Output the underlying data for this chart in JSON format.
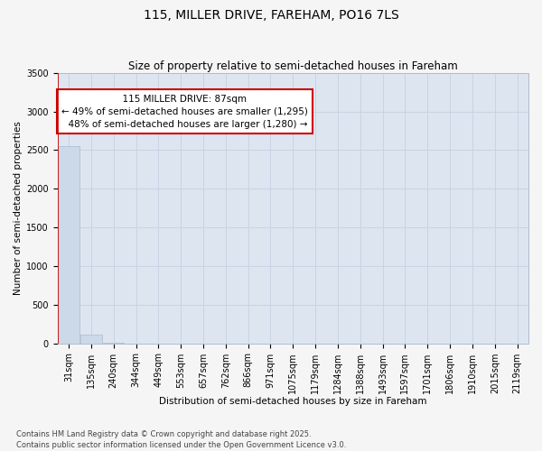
{
  "title1": "115, MILLER DRIVE, FAREHAM, PO16 7LS",
  "title2": "Size of property relative to semi-detached houses in Fareham",
  "xlabel": "Distribution of semi-detached houses by size in Fareham",
  "ylabel": "Number of semi-detached properties",
  "footnote": "Contains HM Land Registry data © Crown copyright and database right 2025.\nContains public sector information licensed under the Open Government Licence v3.0.",
  "bin_labels": [
    "31sqm",
    "135sqm",
    "240sqm",
    "344sqm",
    "449sqm",
    "553sqm",
    "657sqm",
    "762sqm",
    "866sqm",
    "971sqm",
    "1075sqm",
    "1179sqm",
    "1284sqm",
    "1388sqm",
    "1493sqm",
    "1597sqm",
    "1701sqm",
    "1806sqm",
    "1910sqm",
    "2015sqm",
    "2119sqm"
  ],
  "n_bins": 21,
  "bar_values": [
    2550,
    110,
    4,
    1,
    0,
    0,
    0,
    0,
    0,
    0,
    0,
    0,
    0,
    0,
    0,
    0,
    0,
    0,
    0,
    0,
    0
  ],
  "bar_color": "#ccd9e8",
  "bar_edge_color": "#aabbd0",
  "property_bin_index": 0,
  "property_label": "115 MILLER DRIVE: 87sqm",
  "pct_smaller": 49,
  "n_smaller": 1295,
  "pct_larger": 48,
  "n_larger": 1280,
  "annotation_box_color": "#ffffff",
  "annotation_box_edge": "#cc0000",
  "vline_color": "#cc0000",
  "ylim": [
    0,
    3500
  ],
  "yticks": [
    0,
    500,
    1000,
    1500,
    2000,
    2500,
    3000,
    3500
  ],
  "grid_color": "#c8d4e4",
  "bg_color": "#dde5f0",
  "fig_bg_color": "#f5f5f5",
  "title_fontsize": 10,
  "subtitle_fontsize": 8.5,
  "axis_label_fontsize": 7.5,
  "tick_fontsize": 7,
  "annotation_fontsize": 7.5,
  "footnote_fontsize": 6
}
